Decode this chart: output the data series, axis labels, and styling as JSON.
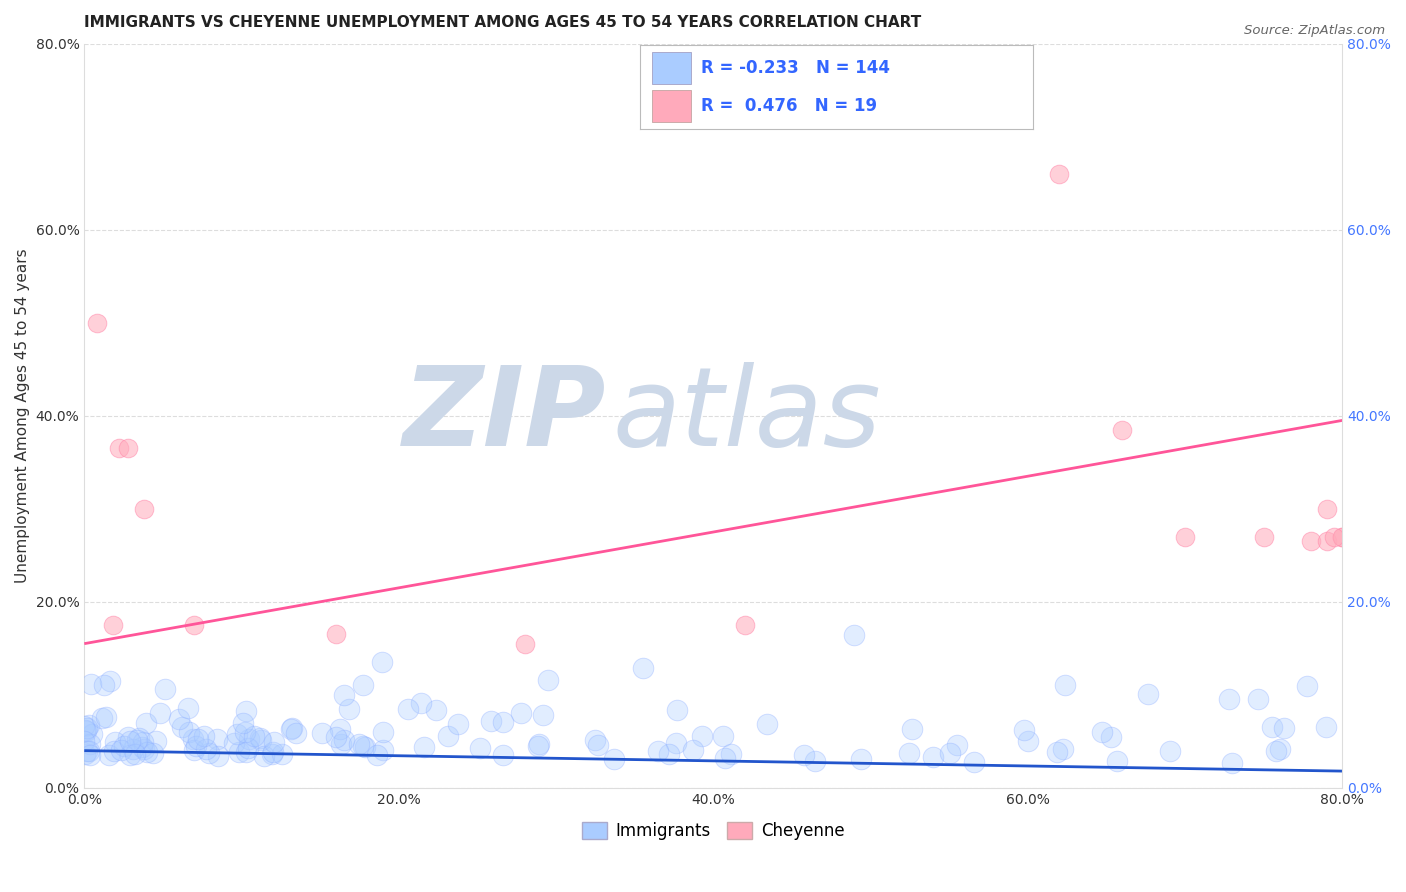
{
  "title": "IMMIGRANTS VS CHEYENNE UNEMPLOYMENT AMONG AGES 45 TO 54 YEARS CORRELATION CHART",
  "source": "Source: ZipAtlas.com",
  "ylabel": "Unemployment Among Ages 45 to 54 years",
  "xlim": [
    0,
    0.8
  ],
  "ylim": [
    0,
    0.8
  ],
  "xticks": [
    0.0,
    0.2,
    0.4,
    0.6,
    0.8
  ],
  "yticks": [
    0.0,
    0.2,
    0.4,
    0.6,
    0.8
  ],
  "xtick_labels": [
    "0.0%",
    "20.0%",
    "40.0%",
    "60.0%",
    "80.0%"
  ],
  "ytick_labels": [
    "0.0%",
    "20.0%",
    "40.0%",
    "60.0%",
    "80.0%"
  ],
  "immigrants_color": "#aaccff",
  "immigrants_edge_color": "#88aaff",
  "cheyenne_color": "#ffaabb",
  "cheyenne_edge_color": "#ff88aa",
  "trendline_immigrants_color": "#2255cc",
  "trendline_cheyenne_color": "#ff5599",
  "R_immigrants": -0.233,
  "N_immigrants": 144,
  "R_cheyenne": 0.476,
  "N_cheyenne": 19,
  "watermark_zip": "ZIP",
  "watermark_atlas": "atlas",
  "watermark_color": "#ccd8e8",
  "background_color": "#ffffff",
  "grid_color": "#dddddd",
  "title_fontsize": 11,
  "axis_label_fontsize": 11,
  "tick_fontsize": 10,
  "right_tick_color": "#4477ff",
  "left_tick_color": "#333333",
  "legend_text_color": "#3366ff",
  "cheyenne_x": [
    0.008,
    0.018,
    0.022,
    0.028,
    0.038,
    0.07,
    0.16,
    0.28,
    0.42,
    0.62,
    0.66,
    0.7,
    0.75,
    0.78,
    0.79,
    0.8,
    0.79,
    0.8,
    0.795
  ],
  "cheyenne_y": [
    0.5,
    0.175,
    0.365,
    0.365,
    0.3,
    0.175,
    0.165,
    0.155,
    0.175,
    0.66,
    0.385,
    0.27,
    0.27,
    0.265,
    0.265,
    0.27,
    0.3,
    0.27,
    0.27
  ],
  "imm_trend_y0": 0.04,
  "imm_trend_y1": 0.018,
  "chey_trend_y0": 0.155,
  "chey_trend_y1": 0.395
}
